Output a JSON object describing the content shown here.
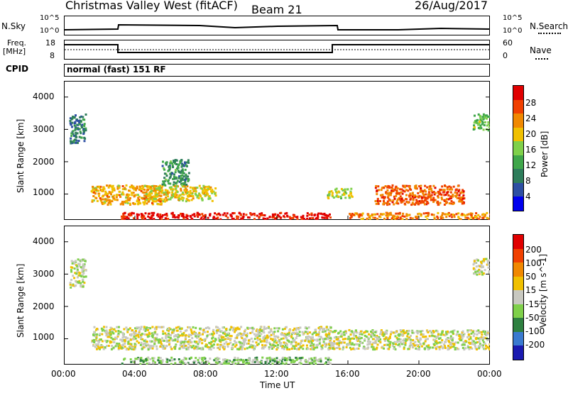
{
  "header": {
    "station": "Christmas Valley West (fitACF)",
    "beam": "Beam 21",
    "date": "26/Aug/2017"
  },
  "noise_panel": {
    "left_label": "N.Sky",
    "right_label": "N.Search",
    "left_ticks": [
      "10^5",
      "10^0"
    ],
    "right_ticks": [
      "10^5",
      "10^0"
    ]
  },
  "freq_panel": {
    "left_label_1": "Freq.",
    "left_label_2": "[MHz]",
    "right_label": "Nave",
    "left_ticks": [
      "18",
      "8"
    ],
    "right_ticks": [
      "60",
      "0"
    ]
  },
  "cpid_panel": {
    "label": "CPID",
    "mode": "normal (fast) 151 RF"
  },
  "colors": {
    "power_scale": [
      "#0000ee",
      "#2d4fa3",
      "#2e7d5b",
      "#3fa64a",
      "#7fd04a",
      "#f0c000",
      "#f08800",
      "#f04000",
      "#e00000"
    ],
    "velocity_scale": [
      "#1a1ab0",
      "#3a7ad0",
      "#2e8040",
      "#7fd04a",
      "#c8c8c0",
      "#f0c000",
      "#f08800",
      "#f04000",
      "#e00000"
    ]
  },
  "chart_data": [
    {
      "type": "heatmap",
      "name": "power",
      "ylabel": "Slant Range [km]",
      "y_ticks": [
        "4000",
        "3000",
        "2000",
        "1000"
      ],
      "ylim": [
        200,
        4500
      ],
      "colorbar_label": "Power [dB]",
      "colorbar_ticks": [
        "28",
        "24",
        "20",
        "16",
        "12",
        "8",
        "4"
      ],
      "colorbar_range": [
        0,
        30
      ],
      "echo_regions": [
        {
          "t0": 0.3,
          "t1": 1.2,
          "r0": 2600,
          "r1": 3500,
          "level": 8
        },
        {
          "t0": 1.5,
          "t1": 5.5,
          "r0": 700,
          "r1": 1300,
          "level": 20
        },
        {
          "t0": 3.2,
          "t1": 15.0,
          "r0": 250,
          "r1": 450,
          "level": 28
        },
        {
          "t0": 4.5,
          "t1": 8.5,
          "r0": 800,
          "r1": 1300,
          "level": 18
        },
        {
          "t0": 5.5,
          "t1": 7.0,
          "r0": 1300,
          "r1": 2100,
          "level": 10
        },
        {
          "t0": 14.8,
          "t1": 16.2,
          "r0": 900,
          "r1": 1200,
          "level": 16
        },
        {
          "t0": 17.5,
          "t1": 22.5,
          "r0": 700,
          "r1": 1300,
          "level": 24
        },
        {
          "t0": 23.0,
          "t1": 24.0,
          "r0": 3000,
          "r1": 3500,
          "level": 14
        },
        {
          "t0": 16.0,
          "t1": 24.0,
          "r0": 250,
          "r1": 450,
          "level": 22
        }
      ]
    },
    {
      "type": "heatmap",
      "name": "velocity",
      "xlabel": "Time UT",
      "ylabel": "Slant Range [km]",
      "x_ticks": [
        "00:00",
        "04:00",
        "08:00",
        "12:00",
        "16:00",
        "20:00",
        "00:00"
      ],
      "xlim": [
        0,
        24
      ],
      "y_ticks": [
        "4000",
        "3000",
        "2000",
        "1000"
      ],
      "ylim": [
        200,
        4500
      ],
      "colorbar_label": "Velocity [m s^-1]",
      "colorbar_ticks": [
        "200",
        "100",
        "50",
        "15",
        "-15",
        "-50",
        "-100",
        "-200"
      ],
      "colorbar_range": [
        -250,
        250
      ],
      "echo_regions": [
        {
          "t0": 0.3,
          "t1": 1.2,
          "r0": 2600,
          "r1": 3500,
          "level": 0
        },
        {
          "t0": 1.5,
          "t1": 15.0,
          "r0": 700,
          "r1": 1400,
          "level": 0
        },
        {
          "t0": 3.2,
          "t1": 15.0,
          "r0": 250,
          "r1": 450,
          "level": -50
        },
        {
          "t0": 14.8,
          "t1": 24.0,
          "r0": 700,
          "r1": 1300,
          "level": 0
        },
        {
          "t0": 23.0,
          "t1": 24.0,
          "r0": 3000,
          "r1": 3500,
          "level": 0
        }
      ]
    }
  ]
}
